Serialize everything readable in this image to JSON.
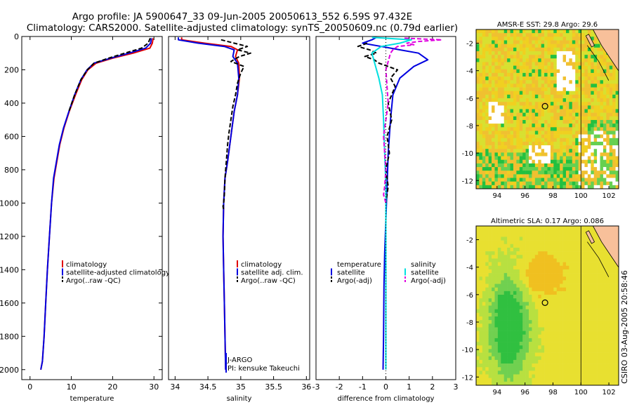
{
  "title": {
    "line1": "Argo profile: JA 5900647_33 09-Jun-2005 20050613_552 6.59S 97.432E",
    "line2": "Climatology: CARS2000. Satellite-adjusted climatology: synTS_20050609.nc (0.79d earlier)"
  },
  "footer_stamp": "CSIRO 03-Aug-2005 20:58:46",
  "colors": {
    "climatology": "#e00000",
    "satellite": "#0000e0",
    "argo": "#000000",
    "salinity_sat": "#00e0e0",
    "salinity_argo": "#e000e0",
    "land": "#f8c09a"
  },
  "chart_data": [
    {
      "type": "line",
      "id": "temperature",
      "xlabel": "temperature",
      "ylabel": "",
      "xlim": [
        -2,
        32
      ],
      "ylim": [
        2060,
        0
      ],
      "xticks": [
        0,
        10,
        20,
        30
      ],
      "yticks": [
        0,
        200,
        400,
        600,
        800,
        1000,
        1200,
        1400,
        1600,
        1800,
        2000
      ],
      "legend": [
        "climatology",
        "satellite-adjusted climatology",
        "Argo(..raw -QC)"
      ],
      "legend_position": "lower-center",
      "series": [
        {
          "name": "climatology",
          "color": "#e00000",
          "x": [
            29.8,
            29.6,
            29.0,
            25.0,
            20.0,
            16.0,
            14.0,
            12.5,
            11.0,
            9.5,
            8.2,
            7.2,
            6.5,
            5.8,
            5.2,
            4.7,
            4.2,
            3.8,
            3.4,
            3.0,
            2.6
          ],
          "y": [
            10,
            40,
            70,
            100,
            130,
            160,
            200,
            260,
            350,
            450,
            550,
            650,
            750,
            850,
            1000,
            1200,
            1400,
            1600,
            1800,
            1950,
            2000
          ]
        },
        {
          "name": "satellite-adjusted climatology",
          "color": "#0000e0",
          "x": [
            29.4,
            29.2,
            28.0,
            24.0,
            19.5,
            15.5,
            13.8,
            12.3,
            10.8,
            9.4,
            8.1,
            7.1,
            6.4,
            5.7,
            5.2,
            4.7,
            4.2,
            3.8,
            3.4,
            3.0,
            2.6
          ],
          "y": [
            10,
            40,
            70,
            100,
            130,
            160,
            200,
            260,
            350,
            450,
            550,
            650,
            750,
            850,
            1000,
            1200,
            1400,
            1600,
            1800,
            1950,
            2000
          ]
        },
        {
          "name": "Argo(..raw -QC)",
          "color": "#000000",
          "dashed": true,
          "x": [
            29.1,
            28.6,
            27.0,
            23.0,
            19.0,
            15.5,
            13.9,
            12.3,
            10.8,
            9.4
          ],
          "y": [
            10,
            40,
            70,
            100,
            130,
            160,
            200,
            260,
            350,
            450
          ]
        }
      ]
    },
    {
      "type": "line",
      "id": "salinity",
      "xlabel": "salinity",
      "ylabel": "",
      "xlim": [
        33.9,
        36.05
      ],
      "ylim": [
        2060,
        0
      ],
      "xticks": [
        34,
        34.5,
        35,
        35.5,
        36
      ],
      "legend": [
        "climatology",
        "satellite adj. clim.",
        "Argo(..raw -QC)"
      ],
      "legend_position": "lower-center",
      "annotations": [
        "J-ARGO",
        "PI: kensuke Takeuchi"
      ],
      "series": [
        {
          "name": "climatology",
          "color": "#e00000",
          "x": [
            34.1,
            34.1,
            34.45,
            34.85,
            34.95,
            34.92,
            34.97,
            34.98,
            34.95,
            34.9,
            34.85,
            34.8,
            34.76,
            34.74,
            34.73,
            34.74,
            34.75,
            34.76,
            34.77
          ],
          "y": [
            5,
            20,
            40,
            60,
            80,
            120,
            160,
            250,
            350,
            450,
            600,
            750,
            850,
            1000,
            1200,
            1400,
            1600,
            1800,
            2000
          ]
        },
        {
          "name": "satellite adj. clim.",
          "color": "#0000e0",
          "x": [
            34.05,
            34.05,
            34.35,
            34.75,
            34.9,
            34.88,
            34.95,
            34.97,
            34.95,
            34.9,
            34.85,
            34.8,
            34.76,
            34.74,
            34.73,
            34.74,
            34.75,
            34.76,
            34.77
          ],
          "y": [
            5,
            20,
            40,
            60,
            80,
            120,
            160,
            250,
            350,
            450,
            600,
            750,
            850,
            1000,
            1200,
            1400,
            1600,
            1800,
            2000
          ]
        },
        {
          "name": "Argo(..raw -QC)",
          "color": "#000000",
          "dashed": true,
          "x": [
            34.7,
            34.9,
            35.1,
            34.95,
            35.15,
            34.98,
            34.85,
            35.05,
            35.0,
            34.95,
            34.92,
            34.88,
            34.85,
            34.82,
            34.8,
            34.78,
            34.76,
            34.75,
            34.74,
            34.73,
            34.74
          ],
          "y": [
            20,
            40,
            60,
            80,
            100,
            120,
            150,
            180,
            220,
            280,
            350,
            420,
            500,
            580,
            650,
            750,
            850,
            950,
            1000,
            1020,
            1040
          ]
        }
      ]
    },
    {
      "type": "line",
      "id": "difference",
      "xlabel": "difference from climatology",
      "ylabel": "",
      "xlim": [
        -3,
        3
      ],
      "ylim": [
        2060,
        0
      ],
      "xticks": [
        -3,
        -2,
        -1,
        0,
        1,
        2,
        3
      ],
      "legend": [
        "temperature",
        "satellite",
        "Argo(-adj)",
        "salinity",
        "satellite",
        "Argo(-adj)"
      ],
      "legend_position": "lower-center",
      "series": [
        {
          "name": "temperature satellite",
          "color": "#0000e0",
          "x": [
            -0.4,
            -0.6,
            -1.0,
            -0.2,
            0.6,
            1.4,
            1.8,
            1.2,
            0.6,
            0.3,
            0.2,
            0.1,
            0.05,
            0.0,
            -0.05,
            -0.08,
            -0.1,
            -0.12
          ],
          "y": [
            5,
            20,
            40,
            60,
            80,
            100,
            140,
            180,
            250,
            350,
            500,
            700,
            900,
            1100,
            1300,
            1500,
            1800,
            2000
          ]
        },
        {
          "name": "temperature Argo(-adj)",
          "color": "#000000",
          "dashed": true,
          "x": [
            -0.8,
            -1.2,
            -0.7,
            -0.4,
            -0.9,
            -0.5,
            -0.3,
            0.5,
            0.2,
            0.4,
            0.1,
            0.25,
            0.05,
            0.15,
            0.0,
            0.1,
            0.0
          ],
          "y": [
            40,
            60,
            80,
            100,
            120,
            140,
            160,
            200,
            250,
            300,
            400,
            500,
            600,
            700,
            800,
            900,
            1000
          ]
        },
        {
          "name": "salinity satellite",
          "color": "#00e0e0",
          "x": [
            -0.6,
            1.1,
            0.6,
            -0.2,
            -0.6,
            -0.5,
            -0.3,
            -0.15,
            -0.1,
            -0.05,
            0.0,
            0.0,
            0.0,
            0.0,
            0.0
          ],
          "y": [
            5,
            20,
            40,
            60,
            100,
            150,
            250,
            350,
            500,
            700,
            900,
            1200,
            1500,
            1800,
            2000
          ]
        },
        {
          "name": "salinity Argo(-adj)",
          "color": "#e000e0",
          "dashed": true,
          "x": [
            0.8,
            2.4,
            1.4,
            0.9,
            1.2,
            0.5,
            0.3,
            0.2,
            0.0,
            0.1,
            -0.1,
            0.0,
            -0.05,
            -0.1,
            0.0
          ],
          "y": [
            10,
            20,
            30,
            40,
            50,
            60,
            80,
            100,
            200,
            400,
            600,
            800,
            900,
            950,
            1000
          ]
        }
      ]
    },
    {
      "type": "heatmap",
      "id": "sst_map",
      "title": "AMSR-E SST: 29.8 Argo: 29.6",
      "xlim": [
        92.5,
        102.7
      ],
      "ylim": [
        -12.6,
        -1.0
      ],
      "xticks": [
        94,
        96,
        98,
        100,
        102
      ],
      "xticklabels": [
        "94",
        "96",
        "98",
        "100",
        "102"
      ],
      "yticks": [
        -2,
        -4,
        -6,
        -8,
        -10,
        -12
      ],
      "marker": {
        "lon": 97.43,
        "lat": -6.59
      }
    },
    {
      "type": "heatmap",
      "id": "sla_map",
      "title": "Altimetric SLA: 0.17 Argo: 0.086",
      "xlim": [
        92.5,
        102.7
      ],
      "ylim": [
        -12.6,
        -1.0
      ],
      "xticks": [
        94,
        96,
        98,
        100,
        102
      ],
      "xticklabels": [
        "94",
        "96",
        "98",
        "100",
        "102"
      ],
      "yticks": [
        -2,
        -4,
        -6,
        -8,
        -10,
        -12
      ],
      "marker": {
        "lon": 97.43,
        "lat": -6.59
      }
    }
  ]
}
